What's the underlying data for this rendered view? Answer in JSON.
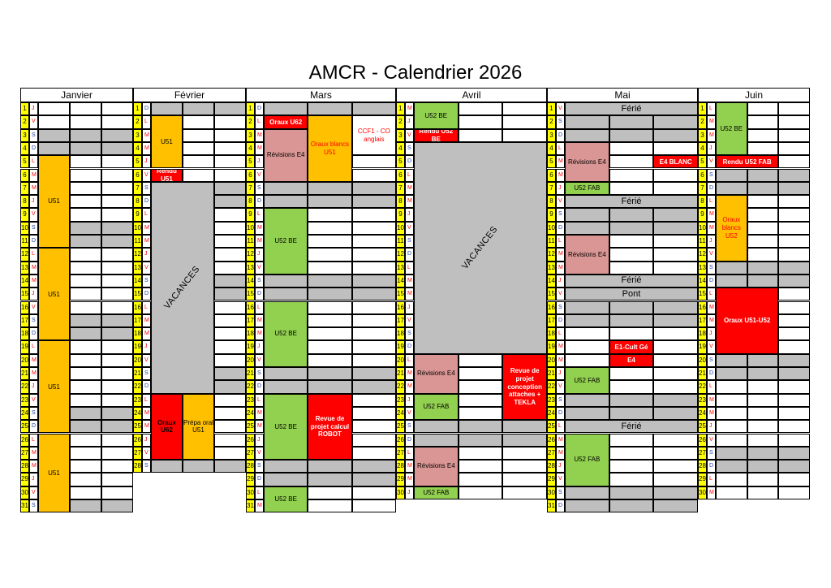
{
  "title": "AMCR - Calendrier 2026",
  "colors": {
    "orange": "#ffc000",
    "red": "#ff0000",
    "green": "#92d050",
    "pink": "#da9694",
    "gray": "#bfbfbf",
    "yellow": "#ffff00",
    "textRed": "#ff0000",
    "textBlue": "#1f3f9f"
  },
  "months": [
    {
      "name": "Janvier",
      "n": 31,
      "first": 4
    },
    {
      "name": "Février",
      "n": 28,
      "first": 0
    },
    {
      "name": "Mars",
      "n": 31,
      "first": 0
    },
    {
      "name": "Avril",
      "n": 30,
      "first": 3
    },
    {
      "name": "Mai",
      "n": 31,
      "first": 5
    },
    {
      "name": "Juin",
      "n": 30,
      "first": 1
    }
  ],
  "day_letters": [
    "D",
    "L",
    "M",
    "M",
    "J",
    "V",
    "S"
  ],
  "events": [
    {
      "m": 0,
      "s": 5,
      "e": 11,
      "c": 0,
      "w": 1,
      "bg": "orange",
      "text": "U51",
      "color": "#000"
    },
    {
      "m": 0,
      "s": 12,
      "e": 18,
      "c": 0,
      "w": 1,
      "bg": "orange",
      "text": "U51",
      "color": "#000"
    },
    {
      "m": 0,
      "s": 19,
      "e": 25,
      "c": 0,
      "w": 1,
      "bg": "orange",
      "text": "U51",
      "color": "#000"
    },
    {
      "m": 0,
      "s": 26,
      "e": 31,
      "c": 0,
      "w": 1,
      "bg": "orange",
      "text": "U51",
      "color": "#000"
    },
    {
      "m": 1,
      "s": 2,
      "e": 5,
      "c": 0,
      "w": 1,
      "bg": "orange",
      "text": "U51",
      "color": "#000"
    },
    {
      "m": 1,
      "s": 6,
      "e": 6,
      "c": 0,
      "w": 1,
      "bg": "red",
      "text": "Rendu U51",
      "color": "#fff",
      "bold": true
    },
    {
      "m": 1,
      "s": 7,
      "e": 22,
      "c": 0,
      "w": 2,
      "bg": "gray",
      "text": "VACANCES",
      "color": "#000",
      "rot": true
    },
    {
      "m": 1,
      "s": 23,
      "e": 27,
      "c": 0,
      "w": 1,
      "bg": "red",
      "text": "Oraux U62",
      "color": "#000",
      "bold": true
    },
    {
      "m": 1,
      "s": 23,
      "e": 27,
      "c": 1,
      "w": 1,
      "bg": "orange",
      "text": "Prépa oral U51",
      "color": "#000"
    },
    {
      "m": 2,
      "s": 2,
      "e": 2,
      "c": 0,
      "w": 1,
      "bg": "red",
      "text": "Oraux U62",
      "color": "#fff",
      "bold": true
    },
    {
      "m": 2,
      "s": 3,
      "e": 6,
      "c": 0,
      "w": 1,
      "bg": "pink",
      "text": "Révisions E4",
      "color": "#000"
    },
    {
      "m": 2,
      "s": 2,
      "e": 6,
      "c": 1,
      "w": 1,
      "bg": "orange",
      "text": "Oraux blancs U51",
      "color": "#ff0000"
    },
    {
      "m": 2,
      "s": 2,
      "e": 4,
      "c": 2,
      "w": 1,
      "bg": "white",
      "text": "CCF1 - CO anglais",
      "color": "#ff0000"
    },
    {
      "m": 2,
      "s": 9,
      "e": 13,
      "c": 0,
      "w": 1,
      "bg": "green",
      "text": "U52 BE",
      "color": "#000"
    },
    {
      "m": 2,
      "s": 16,
      "e": 20,
      "c": 0,
      "w": 1,
      "bg": "green",
      "text": "U52 BE",
      "color": "#000"
    },
    {
      "m": 2,
      "s": 23,
      "e": 27,
      "c": 0,
      "w": 1,
      "bg": "green",
      "text": "U52 BE",
      "color": "#000"
    },
    {
      "m": 2,
      "s": 23,
      "e": 27,
      "c": 1,
      "w": 1,
      "bg": "red",
      "text": "Revue de projet calcul ROBOT",
      "color": "#fff",
      "bold": true
    },
    {
      "m": 2,
      "s": 30,
      "e": 31,
      "c": 0,
      "w": 1,
      "bg": "green",
      "text": "U52 BE",
      "color": "#000"
    },
    {
      "m": 3,
      "s": 1,
      "e": 2,
      "c": 0,
      "w": 1,
      "bg": "green",
      "text": "U52 BE",
      "color": "#000"
    },
    {
      "m": 3,
      "s": 3,
      "e": 3,
      "c": 0,
      "w": 1,
      "bg": "red",
      "text": "Rendu U52 BE",
      "color": "#fff",
      "bold": true
    },
    {
      "m": 3,
      "s": 4,
      "e": 19,
      "c": 0,
      "w": 3,
      "bg": "gray",
      "text": "VACANCES",
      "color": "#000",
      "rot": true
    },
    {
      "m": 3,
      "s": 20,
      "e": 22,
      "c": 0,
      "w": 1,
      "bg": "pink",
      "text": "Révisions E4",
      "color": "#000"
    },
    {
      "m": 3,
      "s": 20,
      "e": 24,
      "c": 2,
      "w": 1,
      "bg": "red",
      "text": "Revue de projet conception attaches + TEKLA",
      "color": "#fff",
      "bold": true
    },
    {
      "m": 3,
      "s": 23,
      "e": 24,
      "c": 0,
      "w": 1,
      "bg": "green",
      "text": "U52 FAB",
      "color": "#000"
    },
    {
      "m": 3,
      "s": 27,
      "e": 29,
      "c": 0,
      "w": 1,
      "bg": "pink",
      "text": "Révisions E4",
      "color": "#000"
    },
    {
      "m": 3,
      "s": 30,
      "e": 30,
      "c": 0,
      "w": 1,
      "bg": "green",
      "text": "U52 FAB",
      "color": "#000"
    },
    {
      "m": 4,
      "s": 1,
      "e": 1,
      "c": 0,
      "w": 3,
      "bg": "gray",
      "text": "Férié",
      "color": "#000",
      "big": true
    },
    {
      "m": 4,
      "s": 4,
      "e": 6,
      "c": 0,
      "w": 1,
      "bg": "pink",
      "text": "Révisions E4",
      "color": "#000"
    },
    {
      "m": 4,
      "s": 5,
      "e": 5,
      "c": 2,
      "w": 1,
      "bg": "red",
      "text": "E4 BLANC",
      "color": "#fff",
      "bold": true
    },
    {
      "m": 4,
      "s": 7,
      "e": 7,
      "c": 0,
      "w": 1,
      "bg": "green",
      "text": "U52 FAB",
      "color": "#000"
    },
    {
      "m": 4,
      "s": 8,
      "e": 8,
      "c": 0,
      "w": 3,
      "bg": "gray",
      "text": "Férié",
      "color": "#000",
      "big": true
    },
    {
      "m": 4,
      "s": 11,
      "e": 13,
      "c": 0,
      "w": 1,
      "bg": "pink",
      "text": "Révisions E4",
      "color": "#000"
    },
    {
      "m": 4,
      "s": 14,
      "e": 14,
      "c": 0,
      "w": 3,
      "bg": "gray",
      "text": "Férié",
      "color": "#000",
      "big": true
    },
    {
      "m": 4,
      "s": 15,
      "e": 15,
      "c": 0,
      "w": 3,
      "bg": "gray",
      "text": "Pont",
      "color": "#000",
      "big": true
    },
    {
      "m": 4,
      "s": 19,
      "e": 19,
      "c": 1,
      "w": 1,
      "bg": "red",
      "text": "E1-Cult Gé",
      "color": "#fff",
      "bold": true
    },
    {
      "m": 4,
      "s": 20,
      "e": 20,
      "c": 1,
      "w": 1,
      "bg": "red",
      "text": "E4",
      "color": "#fff",
      "bold": true
    },
    {
      "m": 4,
      "s": 21,
      "e": 22,
      "c": 0,
      "w": 1,
      "bg": "green",
      "text": "U52 FAB",
      "color": "#000"
    },
    {
      "m": 4,
      "s": 25,
      "e": 25,
      "c": 0,
      "w": 3,
      "bg": "gray",
      "text": "Férié",
      "color": "#000",
      "big": true
    },
    {
      "m": 4,
      "s": 26,
      "e": 29,
      "c": 0,
      "w": 1,
      "bg": "green",
      "text": "U52 FAB",
      "color": "#000"
    },
    {
      "m": 5,
      "s": 1,
      "e": 4,
      "c": 0,
      "w": 1,
      "bg": "green",
      "text": "U52 BE",
      "color": "#000"
    },
    {
      "m": 5,
      "s": 5,
      "e": 5,
      "c": 0,
      "w": 2,
      "bg": "red",
      "text": "Rendu U52 FAB",
      "color": "#fff",
      "bold": true
    },
    {
      "m": 5,
      "s": 8,
      "e": 12,
      "c": 0,
      "w": 1,
      "bg": "orange",
      "text": "Oraux blancs U52",
      "color": "#ff0000"
    },
    {
      "m": 5,
      "s": 15,
      "e": 19,
      "c": 0,
      "w": 2,
      "bg": "red",
      "text": "Oraux U51-U52",
      "color": "#fff",
      "bold": true
    }
  ]
}
